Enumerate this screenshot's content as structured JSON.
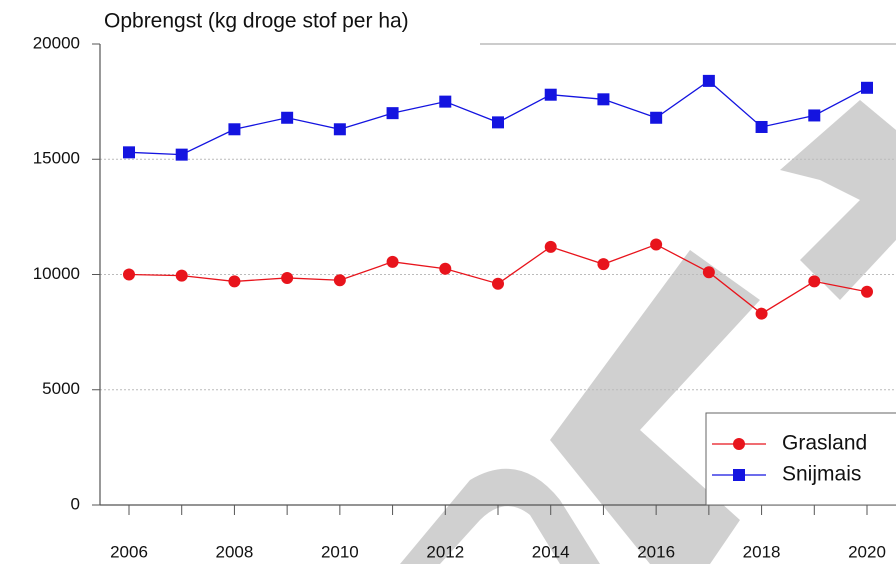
{
  "chart_data": {
    "type": "line",
    "title": "Opbrengst (kg droge stof per ha)",
    "x": [
      2006,
      2007,
      2008,
      2009,
      2010,
      2011,
      2012,
      2013,
      2014,
      2015,
      2016,
      2017,
      2018,
      2019,
      2020
    ],
    "series": [
      {
        "name": "Grasland",
        "color": "#e8141c",
        "marker": "circle",
        "values": [
          10000,
          9950,
          9700,
          9850,
          9750,
          10550,
          10250,
          9600,
          11200,
          10450,
          11300,
          10100,
          8300,
          9700,
          9250
        ]
      },
      {
        "name": "Snijmais",
        "color": "#1414e0",
        "marker": "square",
        "values": [
          15300,
          15200,
          16300,
          16800,
          16300,
          17000,
          17500,
          16600,
          17800,
          17600,
          16800,
          18400,
          16400,
          16900,
          18100
        ]
      }
    ],
    "xlim": [
      2005.45,
      2020.55
    ],
    "xticks": [
      2006,
      2008,
      2010,
      2012,
      2014,
      2016,
      2018,
      2020
    ],
    "ylim": [
      0,
      20000
    ],
    "yticks": [
      0,
      5000,
      10000,
      15000,
      20000
    ],
    "grid": true,
    "legend": "lower right"
  }
}
